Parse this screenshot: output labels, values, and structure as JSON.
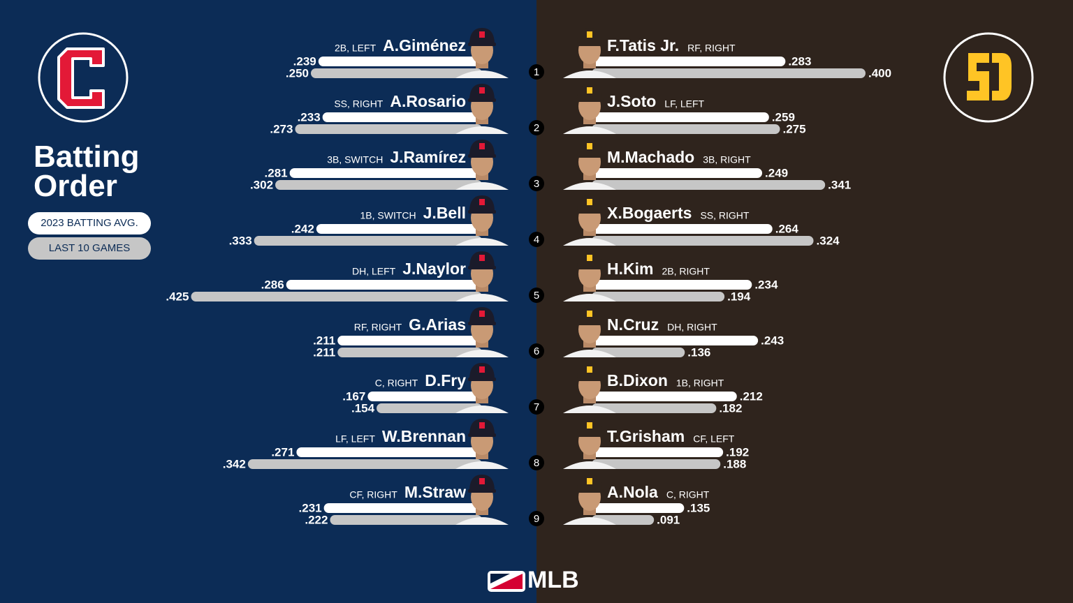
{
  "title": "Batting Order",
  "batting_order": [
    1,
    2,
    3,
    4,
    5,
    6,
    7,
    8,
    9
  ],
  "footer": "MLB",
  "chart_data": [
    {
      "type": "bar",
      "orientation": "horizontal",
      "xlim": [
        0,
        0.5
      ],
      "categories": [
        "A.Giménez",
        "A.Rosario",
        "J.Ramírez",
        "J.Bell",
        "J.Naylor",
        "G.Arias",
        "D.Fry",
        "W.Brennan",
        "M.Straw"
      ],
      "positions": [
        "2B, LEFT",
        "SS, RIGHT",
        "3B, SWITCH",
        "1B, SWITCH",
        "DH, LEFT",
        "RF, RIGHT",
        "C, RIGHT",
        "LF, LEFT",
        "CF, RIGHT"
      ],
      "series": [
        {
          "name": "2023 BATTING AVG.",
          "color": "#ffffff",
          "values": [
            0.239,
            0.233,
            0.281,
            0.242,
            0.286,
            0.211,
            0.167,
            0.271,
            0.231
          ],
          "value_labels": [
            ".239",
            ".233",
            ".281",
            ".242",
            ".286",
            ".211",
            ".167",
            ".271",
            ".231"
          ]
        },
        {
          "name": "LAST 10 GAMES",
          "color": "#c6c6c6",
          "values": [
            0.25,
            0.273,
            0.302,
            0.333,
            0.425,
            0.211,
            0.154,
            0.342,
            0.222
          ],
          "value_labels": [
            ".250",
            ".273",
            ".302",
            ".333",
            ".425",
            ".211",
            ".154",
            ".342",
            ".222"
          ]
        }
      ]
    },
    {
      "type": "bar",
      "orientation": "horizontal",
      "xlim": [
        0,
        0.5
      ],
      "categories": [
        "F.Tatis Jr.",
        "J.Soto",
        "M.Machado",
        "X.Bogaerts",
        "H.Kim",
        "N.Cruz",
        "B.Dixon",
        "T.Grisham",
        "A.Nola"
      ],
      "positions": [
        "RF, RIGHT",
        "LF, LEFT",
        "3B, RIGHT",
        "SS, RIGHT",
        "2B, RIGHT",
        "DH, RIGHT",
        "1B, RIGHT",
        "CF, LEFT",
        "C, RIGHT"
      ],
      "series": [
        {
          "color": "#ffffff",
          "values": [
            0.283,
            0.259,
            0.249,
            0.264,
            0.234,
            0.243,
            0.212,
            0.192,
            0.135
          ],
          "value_labels": [
            ".283",
            ".259",
            ".249",
            ".264",
            ".234",
            ".243",
            ".212",
            ".192",
            ".135"
          ]
        },
        {
          "color": "#c6c6c6",
          "values": [
            0.4,
            0.275,
            0.341,
            0.324,
            0.194,
            0.136,
            0.182,
            0.188,
            0.091
          ],
          "value_labels": [
            ".400",
            ".275",
            ".341",
            ".324",
            ".194",
            ".136",
            ".182",
            ".188",
            ".091"
          ]
        }
      ]
    }
  ]
}
